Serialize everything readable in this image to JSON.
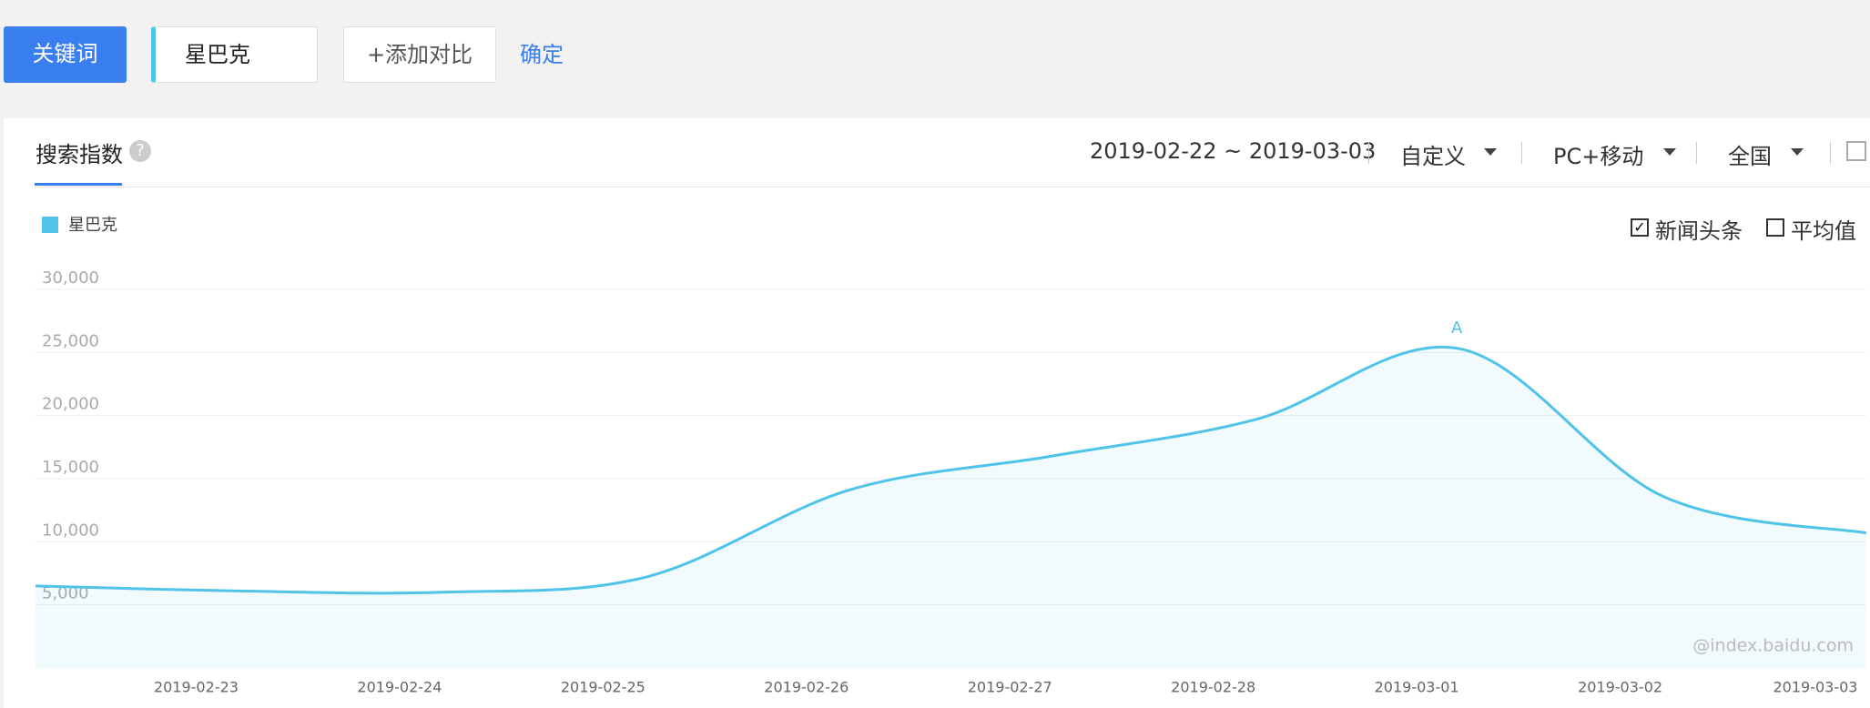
{
  "toolbar": {
    "keyword_button": "关键词",
    "keyword": "星巴克",
    "add_compare": "+添加对比",
    "confirm": "确定"
  },
  "panel": {
    "tab": "搜索指数",
    "date_range": "2019-02-22 ~ 2019-03-03",
    "filters": [
      "自定义",
      "PC+移动",
      "全国"
    ],
    "options": [
      {
        "label": "新闻头条",
        "checked": true
      },
      {
        "label": "平均值",
        "checked": false
      }
    ]
  },
  "chart_data": {
    "type": "line",
    "categories": [
      null,
      "2019-02-23",
      "2019-02-24",
      "2019-02-25",
      "2019-02-26",
      "2019-02-27",
      "2019-02-28",
      "2019-03-01",
      "2019-03-02",
      "2019-03-03"
    ],
    "series": [
      {
        "name": "星巴克",
        "color": "#4fc3e8",
        "values": [
          6500,
          6100,
          6000,
          7200,
          14100,
          16800,
          19700,
          25300,
          13600,
          10700
        ]
      }
    ],
    "ylim": [
      0,
      30000
    ],
    "yticks": [
      {
        "value": 5000,
        "label": "5,000"
      },
      {
        "value": 10000,
        "label": "10,000"
      },
      {
        "value": 15000,
        "label": "15,000"
      },
      {
        "value": 20000,
        "label": "20,000"
      },
      {
        "value": 25000,
        "label": "25,000"
      },
      {
        "value": 30000,
        "label": "30,000"
      }
    ],
    "grid": true,
    "annotation": {
      "text": "A",
      "index": 7
    },
    "watermark": "@index.baidu.com"
  }
}
